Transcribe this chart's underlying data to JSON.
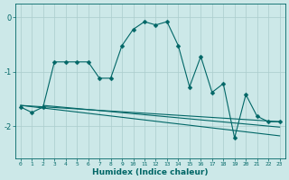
{
  "title": "",
  "xlabel": "Humidex (Indice chaleur)",
  "ylabel": "",
  "xlim": [
    -0.5,
    23.5
  ],
  "ylim": [
    -2.6,
    0.25
  ],
  "yticks": [
    0,
    -1,
    -2
  ],
  "xticks": [
    0,
    1,
    2,
    3,
    4,
    5,
    6,
    7,
    8,
    9,
    10,
    11,
    12,
    13,
    14,
    15,
    16,
    17,
    18,
    19,
    20,
    21,
    22,
    23
  ],
  "bg_color": "#cce8e8",
  "line_color": "#006666",
  "grid_color": "#aacccc",
  "main_x": [
    0,
    1,
    2,
    3,
    4,
    5,
    6,
    7,
    8,
    9,
    10,
    11,
    12,
    13,
    14,
    15,
    16,
    17,
    18,
    19,
    20,
    21,
    22,
    23
  ],
  "main_y": [
    -1.65,
    -1.75,
    -1.65,
    -0.82,
    -0.82,
    -0.82,
    -0.82,
    -1.12,
    -1.12,
    -0.52,
    -0.22,
    -0.08,
    -0.14,
    -0.08,
    -0.52,
    -1.28,
    -0.72,
    -1.38,
    -1.22,
    -2.22,
    -1.42,
    -1.82,
    -1.92,
    -1.92
  ],
  "trend1_x": [
    0,
    23
  ],
  "trend1_y": [
    -1.62,
    -1.92
  ],
  "trend2_x": [
    0,
    23
  ],
  "trend2_y": [
    -1.62,
    -2.18
  ],
  "trend3_x": [
    2,
    23
  ],
  "trend3_y": [
    -1.62,
    -2.02
  ]
}
